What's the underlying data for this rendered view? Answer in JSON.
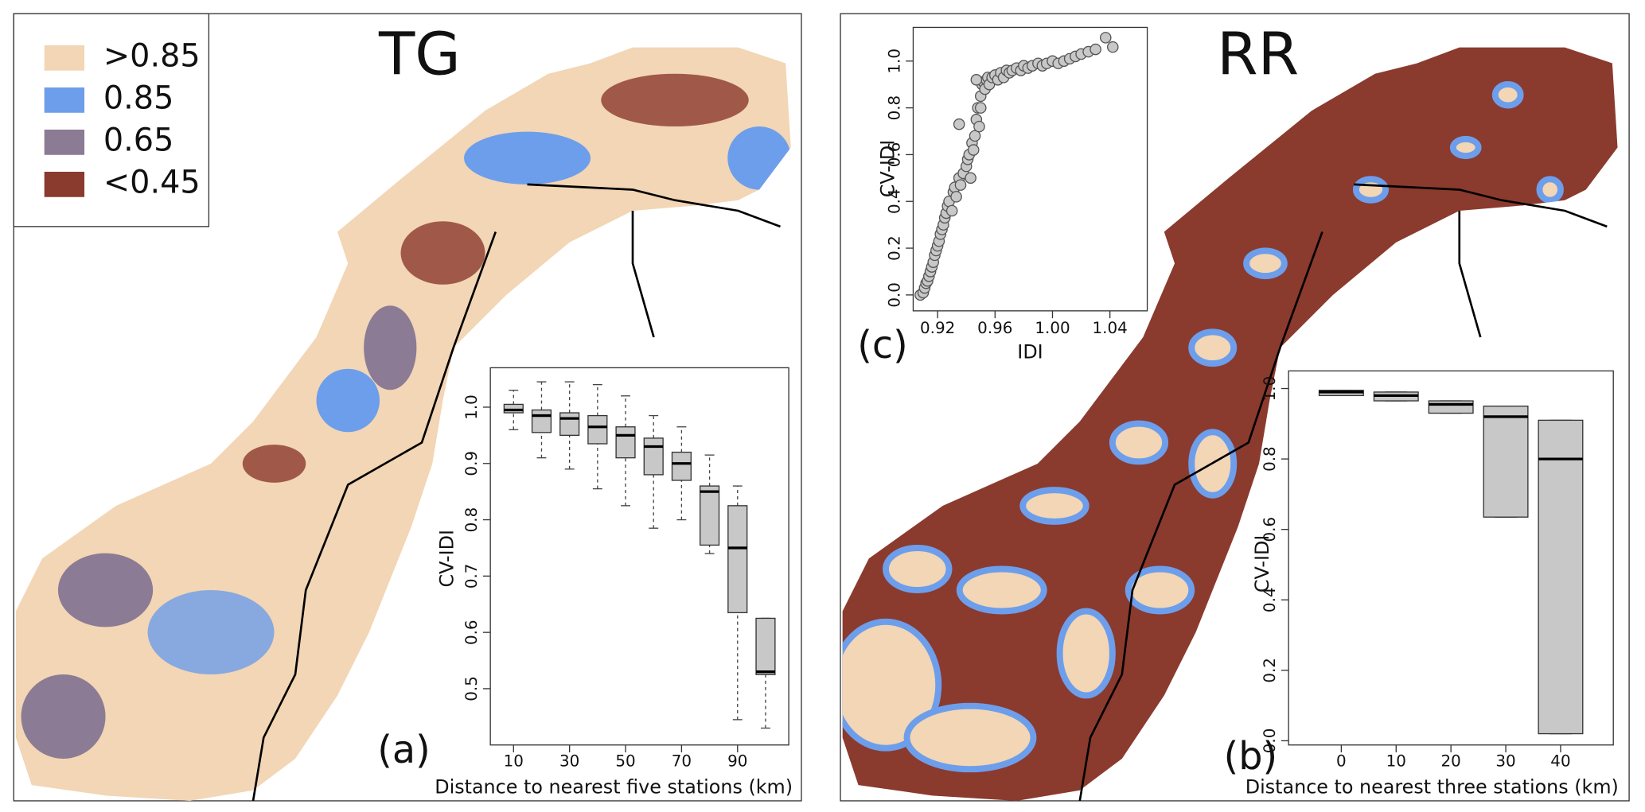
{
  "maps": [
    {
      "title": "TG"
    },
    {
      "title": "RR"
    }
  ],
  "legend": {
    "items": [
      {
        "label": ">0.85",
        "color": "#f2d6b5"
      },
      {
        "label": "0.85",
        "color": "#6d9eeb"
      },
      {
        "label": "0.65",
        "color": "#8c7b94"
      },
      {
        "label": "<0.45",
        "color": "#8b3a2e"
      }
    ]
  },
  "chart_data": [
    {
      "type": "box",
      "panel_label": "(a)",
      "x_label": "Distance to nearest five stations (km)",
      "y_label": "CV-IDI",
      "categories": [
        "10",
        null,
        "30",
        null,
        "50",
        null,
        "70",
        null,
        "90",
        null
      ],
      "color": "#c8c8c8",
      "boxes": [
        {
          "whisker_low": 0.96,
          "q1": 0.99,
          "median": 0.995,
          "q3": 1.005,
          "whisker_high": 1.03
        },
        {
          "whisker_low": 0.91,
          "q1": 0.955,
          "median": 0.985,
          "q3": 0.995,
          "whisker_high": 1.045
        },
        {
          "whisker_low": 0.89,
          "q1": 0.95,
          "median": 0.98,
          "q3": 0.99,
          "whisker_high": 1.045
        },
        {
          "whisker_low": 0.855,
          "q1": 0.935,
          "median": 0.965,
          "q3": 0.985,
          "whisker_high": 1.04
        },
        {
          "whisker_low": 0.825,
          "q1": 0.91,
          "median": 0.95,
          "q3": 0.965,
          "whisker_high": 1.02
        },
        {
          "whisker_low": 0.785,
          "q1": 0.88,
          "median": 0.93,
          "q3": 0.945,
          "whisker_high": 0.985
        },
        {
          "whisker_low": 0.8,
          "q1": 0.87,
          "median": 0.9,
          "q3": 0.92,
          "whisker_high": 0.965
        },
        {
          "whisker_low": 0.74,
          "q1": 0.755,
          "median": 0.85,
          "q3": 0.86,
          "whisker_high": 0.915
        },
        {
          "whisker_low": 0.445,
          "q1": 0.635,
          "median": 0.75,
          "q3": 0.825,
          "whisker_high": 0.86
        },
        {
          "whisker_low": 0.43,
          "q1": 0.525,
          "median": 0.53,
          "q3": 0.625,
          "whisker_high": 0.625
        }
      ],
      "ylim": [
        0.4,
        1.07
      ],
      "yticks": [
        0.5,
        0.6,
        0.7,
        0.8,
        0.9,
        {
          "value": 1,
          "label": "1.0"
        }
      ]
    },
    {
      "type": "box",
      "panel_label": "(b)",
      "x_label": "Distance to nearest three stations (km)",
      "y_label": "CV-IDI",
      "categories": [
        "0",
        "10",
        "20",
        "30",
        "40"
      ],
      "color": "#c8c8c8",
      "boxes": [
        {
          "whisker_low": 0.98,
          "q1": 0.98,
          "median": 0.99,
          "q3": 0.995,
          "whisker_high": 0.995
        },
        {
          "whisker_low": 0.965,
          "q1": 0.965,
          "median": 0.98,
          "q3": 0.99,
          "whisker_high": 0.99
        },
        {
          "whisker_low": 0.93,
          "q1": 0.93,
          "median": 0.955,
          "q3": 0.965,
          "whisker_high": 0.965
        },
        {
          "whisker_low": 0.635,
          "q1": 0.635,
          "median": 0.92,
          "q3": 0.95,
          "whisker_high": 0.95
        },
        {
          "whisker_low": 0.02,
          "q1": 0.02,
          "median": 0.8,
          "q3": 0.91,
          "whisker_high": 0.91
        }
      ],
      "ylim": [
        -0.012,
        1.05
      ],
      "yticks": [
        {
          "value": 0,
          "label": "0.0"
        },
        0.2,
        0.4,
        0.6,
        0.8,
        {
          "value": 1,
          "label": "1.0"
        }
      ]
    },
    {
      "type": "scatter",
      "panel_label": "(c)",
      "x_label": "IDI",
      "y_label": "CV-IDI",
      "color": "#c8c8c8",
      "x": [
        0.908,
        0.91,
        0.911,
        0.912,
        0.913,
        0.914,
        0.915,
        0.916,
        0.917,
        0.918,
        0.919,
        0.92,
        0.921,
        0.922,
        0.923,
        0.924,
        0.925,
        0.926,
        0.927,
        0.928,
        0.93,
        0.931,
        0.932,
        0.933,
        0.935,
        0.936,
        0.938,
        0.94,
        0.941,
        0.942,
        0.943,
        0.944,
        0.945,
        0.946,
        0.947,
        0.948,
        0.949,
        0.95,
        0.951,
        0.952,
        0.953,
        0.954,
        0.955,
        0.956,
        0.958,
        0.96,
        0.962,
        0.964,
        0.966,
        0.968,
        0.97,
        0.972,
        0.975,
        0.978,
        0.98,
        0.983,
        0.986,
        0.99,
        0.993,
        0.996,
        1.0,
        1.004,
        1.008,
        1.012,
        1.016,
        1.02,
        1.025,
        1.03,
        1.037,
        1.042,
        0.935,
        0.947,
        0.95
      ],
      "values": [
        0.0,
        0.01,
        0.03,
        0.05,
        0.06,
        0.08,
        0.1,
        0.12,
        0.14,
        0.17,
        0.19,
        0.21,
        0.23,
        0.26,
        0.28,
        0.3,
        0.33,
        0.35,
        0.38,
        0.4,
        0.36,
        0.44,
        0.46,
        0.42,
        0.5,
        0.47,
        0.52,
        0.55,
        0.58,
        0.6,
        0.5,
        0.65,
        0.62,
        0.68,
        0.75,
        0.8,
        0.72,
        0.85,
        0.9,
        0.91,
        0.88,
        0.92,
        0.93,
        0.9,
        0.93,
        0.94,
        0.92,
        0.95,
        0.93,
        0.96,
        0.95,
        0.96,
        0.97,
        0.96,
        0.98,
        0.97,
        0.98,
        0.99,
        0.98,
        0.99,
        1.0,
        0.99,
        1.0,
        1.01,
        1.02,
        1.03,
        1.04,
        1.05,
        1.1,
        1.06,
        0.73,
        0.92,
        0.8
      ],
      "xlim": [
        0.903,
        1.066
      ],
      "xticks": [
        0.92,
        0.96,
        {
          "value": 1,
          "label": "1.00"
        },
        1.04
      ],
      "ylim": [
        -0.068,
        1.144
      ],
      "yticks": [
        {
          "value": 0,
          "label": "0.0"
        },
        0.2,
        0.4,
        0.6,
        0.8,
        {
          "value": 1,
          "label": "1.0"
        }
      ]
    }
  ]
}
